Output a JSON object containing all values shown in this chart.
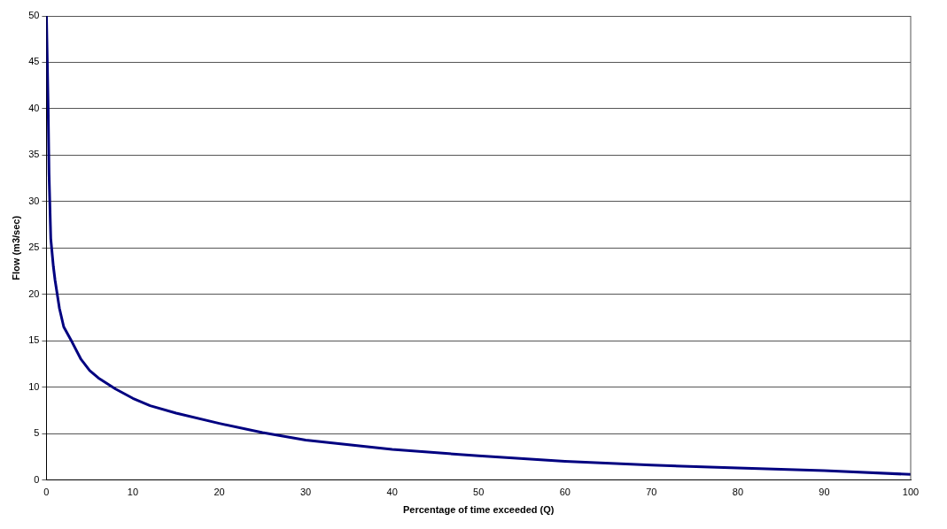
{
  "chart_data": {
    "type": "line",
    "xlabel": "Percentage of time exceeded (Q)",
    "ylabel": "Flow (m3/sec)",
    "series": [
      {
        "color": "#000080",
        "x": [
          0,
          0.1,
          0.2,
          0.3,
          0.5,
          0.8,
          1,
          1.5,
          2,
          3,
          4,
          5,
          6,
          8,
          10,
          12,
          15,
          20,
          25,
          30,
          35,
          40,
          50,
          60,
          70,
          80,
          90,
          100
        ],
        "values": [
          50,
          45,
          40,
          33,
          26,
          23,
          21.5,
          18.5,
          16.5,
          14.8,
          13,
          11.8,
          11,
          9.8,
          8.8,
          8,
          7.2,
          6.1,
          5.1,
          4.3,
          3.8,
          3.3,
          2.6,
          2.0,
          1.6,
          1.3,
          1.0,
          0.6
        ]
      }
    ],
    "xlim": [
      0,
      100
    ],
    "xticks": [
      0,
      10,
      20,
      30,
      40,
      50,
      60,
      70,
      80,
      90,
      100
    ],
    "ylim": [
      0,
      50
    ],
    "yticks": [
      0,
      5,
      10,
      15,
      20,
      25,
      30,
      35,
      40,
      45,
      50
    ],
    "grid": "y",
    "legend": false,
    "marker": "none",
    "line_style": "solid"
  }
}
